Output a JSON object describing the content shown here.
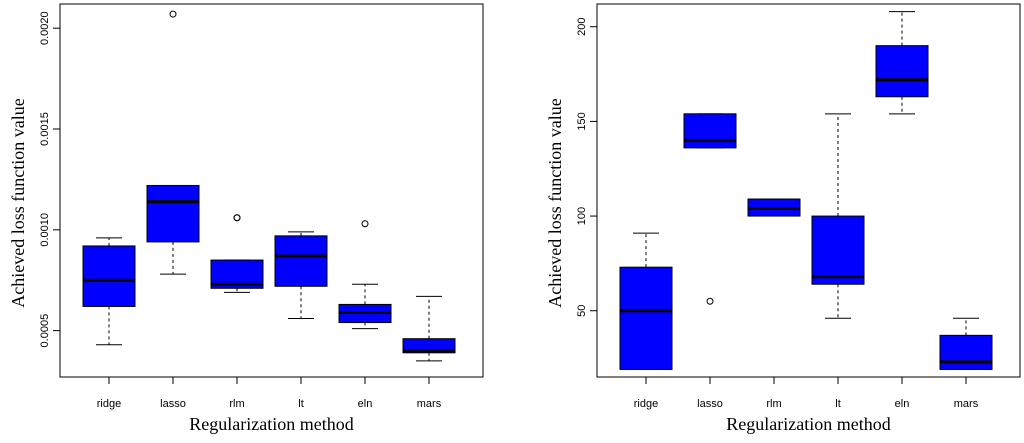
{
  "chart_data": [
    {
      "type": "box",
      "xlabel": "Regularization method",
      "ylabel": "Achieved loss function value",
      "categories": [
        "ridge",
        "lasso",
        "rlm",
        "lt",
        "eln",
        "mars"
      ],
      "yticks": [
        "0.0005",
        "0.0010",
        "0.0015",
        "0.0020"
      ],
      "ytick_values": [
        0.0005,
        0.001,
        0.0015,
        0.002
      ],
      "ylim": [
        0.00027,
        0.00212
      ],
      "box_color": "#0000ff",
      "boxes": [
        {
          "min": 0.00043,
          "q1": 0.00062,
          "median": 0.00075,
          "q3": 0.00092,
          "max": 0.00096,
          "outliers": []
        },
        {
          "min": 0.00078,
          "q1": 0.00094,
          "median": 0.00114,
          "q3": 0.00122,
          "max": 0.00122,
          "outliers": [
            0.00207
          ]
        },
        {
          "min": 0.00069,
          "q1": 0.00071,
          "median": 0.00073,
          "q3": 0.00085,
          "max": 0.00085,
          "outliers": [
            0.00106,
            0.00106
          ]
        },
        {
          "min": 0.00056,
          "q1": 0.00072,
          "median": 0.00087,
          "q3": 0.00097,
          "max": 0.00099,
          "outliers": []
        },
        {
          "min": 0.00051,
          "q1": 0.00054,
          "median": 0.00059,
          "q3": 0.00063,
          "max": 0.00073,
          "outliers": [
            0.00103
          ]
        },
        {
          "min": 0.00035,
          "q1": 0.00039,
          "median": 0.0004,
          "q3": 0.00046,
          "max": 0.00067,
          "outliers": []
        }
      ]
    },
    {
      "type": "box",
      "xlabel": "Regularization method",
      "ylabel": "Achieved loss function value",
      "categories": [
        "ridge",
        "lasso",
        "rlm",
        "lt",
        "eln",
        "mars"
      ],
      "yticks": [
        "50",
        "100",
        "150",
        "200"
      ],
      "ytick_values": [
        50,
        100,
        150,
        200
      ],
      "ylim": [
        15,
        212
      ],
      "box_color": "#0000ff",
      "boxes": [
        {
          "min": 19,
          "q1": 19,
          "median": 50,
          "q3": 73,
          "max": 91,
          "outliers": []
        },
        {
          "min": 136,
          "q1": 136,
          "median": 140,
          "q3": 154,
          "max": 154,
          "outliers": [
            55
          ]
        },
        {
          "min": 100,
          "q1": 100,
          "median": 104,
          "q3": 109,
          "max": 109,
          "outliers": []
        },
        {
          "min": 46,
          "q1": 64,
          "median": 68,
          "q3": 100,
          "max": 154,
          "outliers": []
        },
        {
          "min": 154,
          "q1": 163,
          "median": 172,
          "q3": 190,
          "max": 208,
          "outliers": []
        },
        {
          "min": 19,
          "q1": 19,
          "median": 23,
          "q3": 37,
          "max": 46,
          "outliers": []
        }
      ]
    }
  ]
}
